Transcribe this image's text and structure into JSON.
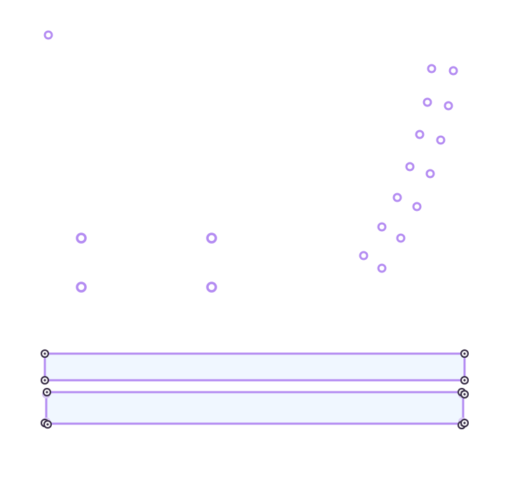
{
  "colors": {
    "accent": "#b48cf2",
    "fill": "#f0f7ff",
    "handle": "#3a3048",
    "background": "#ffffff"
  },
  "handle_icon": "circle-target-icon",
  "point_count": 21,
  "shape_count": 2
}
